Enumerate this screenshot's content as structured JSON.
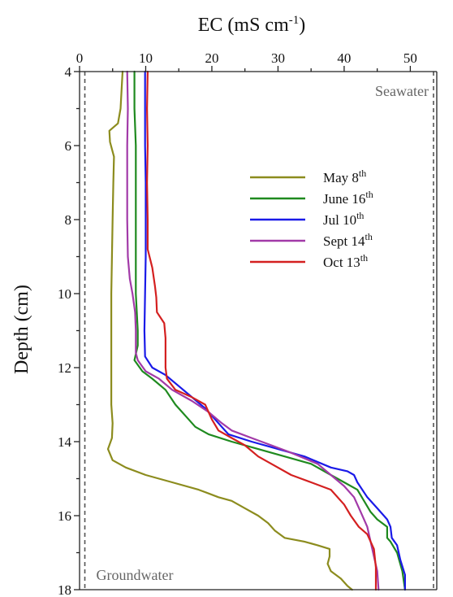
{
  "chart_data": {
    "type": "line",
    "orientation": "depth-profile",
    "title": "",
    "xlabel": "EC (mS cm",
    "xlabel_superscript": "-1",
    "xlabel_suffix": ")",
    "ylabel": "Depth (cm)",
    "xlim": [
      0,
      54
    ],
    "ylim": [
      4,
      18
    ],
    "y_inverted": true,
    "x_axis_position": "top",
    "x_ticks": [
      0,
      10,
      20,
      30,
      40,
      50
    ],
    "y_ticks": [
      4,
      6,
      8,
      10,
      12,
      14,
      16,
      18
    ],
    "grid": false,
    "legend_position": "center-right",
    "reference_lines": [
      {
        "label": "Groundwater",
        "x": 0.8,
        "label_position": "bottom-left"
      },
      {
        "label": "Seawater",
        "x": 54,
        "label_position": "top-right"
      }
    ],
    "series": [
      {
        "name": "May 8",
        "name_superscript": "th",
        "color": "#8c8c1e",
        "points": [
          [
            6.5,
            4
          ],
          [
            6.2,
            5
          ],
          [
            5.8,
            5.4
          ],
          [
            4.5,
            5.6
          ],
          [
            4.6,
            5.9
          ],
          [
            5.2,
            6.3
          ],
          [
            5.1,
            7
          ],
          [
            5.0,
            8
          ],
          [
            4.9,
            9
          ],
          [
            4.8,
            10
          ],
          [
            4.8,
            11
          ],
          [
            4.8,
            12
          ],
          [
            4.8,
            13
          ],
          [
            5.0,
            13.5
          ],
          [
            4.9,
            13.9
          ],
          [
            4.3,
            14.2
          ],
          [
            5.0,
            14.5
          ],
          [
            7,
            14.7
          ],
          [
            10,
            14.9
          ],
          [
            14,
            15.1
          ],
          [
            18,
            15.3
          ],
          [
            21,
            15.5
          ],
          [
            23,
            15.6
          ],
          [
            25,
            15.8
          ],
          [
            27,
            16.0
          ],
          [
            28.5,
            16.2
          ],
          [
            29.5,
            16.4
          ],
          [
            31,
            16.6
          ],
          [
            34,
            16.7
          ],
          [
            36,
            16.8
          ],
          [
            37.8,
            16.9
          ],
          [
            37.8,
            17.1
          ],
          [
            37.5,
            17.3
          ],
          [
            38,
            17.5
          ],
          [
            39.5,
            17.7
          ],
          [
            40.5,
            17.9
          ],
          [
            41.2,
            18
          ]
        ]
      },
      {
        "name": "June 16",
        "name_superscript": "th",
        "color": "#1f8a1f",
        "points": [
          [
            8.3,
            4
          ],
          [
            8.3,
            5
          ],
          [
            8.5,
            6
          ],
          [
            8.5,
            7
          ],
          [
            8.5,
            8
          ],
          [
            8.5,
            9
          ],
          [
            8.5,
            10
          ],
          [
            8.8,
            11
          ],
          [
            8.8,
            11.4
          ],
          [
            8.3,
            11.8
          ],
          [
            9.5,
            12.1
          ],
          [
            11,
            12.3
          ],
          [
            13,
            12.6
          ],
          [
            14.5,
            13
          ],
          [
            16,
            13.3
          ],
          [
            17.5,
            13.6
          ],
          [
            19.5,
            13.8
          ],
          [
            23,
            14.0
          ],
          [
            27,
            14.2
          ],
          [
            31,
            14.4
          ],
          [
            35,
            14.6
          ],
          [
            38,
            14.9
          ],
          [
            40,
            15.1
          ],
          [
            42,
            15.3
          ],
          [
            43,
            15.6
          ],
          [
            44,
            15.9
          ],
          [
            45,
            16.1
          ],
          [
            46.5,
            16.3
          ],
          [
            46.5,
            16.6
          ],
          [
            47,
            16.7
          ],
          [
            48,
            17.0
          ],
          [
            48.8,
            17.5
          ],
          [
            49.2,
            18
          ]
        ]
      },
      {
        "name": "Jul 10",
        "name_superscript": "th",
        "color": "#1a1ae8",
        "points": [
          [
            9.9,
            4
          ],
          [
            9.9,
            5
          ],
          [
            9.9,
            6
          ],
          [
            10,
            7
          ],
          [
            10,
            8
          ],
          [
            10,
            9
          ],
          [
            9.9,
            10
          ],
          [
            9.8,
            11
          ],
          [
            9.9,
            11.7
          ],
          [
            11,
            12
          ],
          [
            13,
            12.2
          ],
          [
            15,
            12.5
          ],
          [
            17,
            12.8
          ],
          [
            19,
            13.1
          ],
          [
            21,
            13.5
          ],
          [
            22.5,
            13.8
          ],
          [
            26,
            14.0
          ],
          [
            30,
            14.2
          ],
          [
            34,
            14.4
          ],
          [
            38,
            14.7
          ],
          [
            40.5,
            14.8
          ],
          [
            41.5,
            14.9
          ],
          [
            42,
            15.1
          ],
          [
            43.5,
            15.5
          ],
          [
            45,
            15.8
          ],
          [
            46.5,
            16.1
          ],
          [
            47,
            16.3
          ],
          [
            47.2,
            16.6
          ],
          [
            48,
            16.8
          ],
          [
            48.5,
            17.2
          ],
          [
            49.2,
            17.6
          ],
          [
            49.2,
            18
          ]
        ]
      },
      {
        "name": "Sept 14",
        "name_superscript": "th",
        "color": "#a23aa8",
        "points": [
          [
            7.2,
            4
          ],
          [
            7.3,
            5
          ],
          [
            7.2,
            6
          ],
          [
            7.2,
            7
          ],
          [
            7.2,
            8
          ],
          [
            7.3,
            9
          ],
          [
            7.6,
            9.6
          ],
          [
            8.0,
            10
          ],
          [
            8.4,
            10.5
          ],
          [
            8.5,
            11
          ],
          [
            8.5,
            11.6
          ],
          [
            8.8,
            11.8
          ],
          [
            10,
            12.1
          ],
          [
            12,
            12.3
          ],
          [
            14,
            12.6
          ],
          [
            17,
            12.9
          ],
          [
            19.5,
            13.2
          ],
          [
            21.5,
            13.5
          ],
          [
            23,
            13.7
          ],
          [
            26,
            13.9
          ],
          [
            29,
            14.1
          ],
          [
            32,
            14.3
          ],
          [
            36,
            14.6
          ],
          [
            38,
            14.9
          ],
          [
            40,
            15.2
          ],
          [
            41.5,
            15.5
          ],
          [
            42.5,
            15.9
          ],
          [
            43.5,
            16.3
          ],
          [
            44,
            16.7
          ],
          [
            44.5,
            17.1
          ],
          [
            45,
            17.5
          ],
          [
            45.2,
            18
          ]
        ]
      },
      {
        "name": "Oct 13",
        "name_superscript": "th",
        "color": "#d42020",
        "points": [
          [
            10.3,
            4
          ],
          [
            10.2,
            5
          ],
          [
            10.3,
            6
          ],
          [
            10.2,
            7
          ],
          [
            10.3,
            8
          ],
          [
            10.3,
            8.8
          ],
          [
            11.0,
            9.3
          ],
          [
            11.4,
            9.8
          ],
          [
            11.6,
            10.1
          ],
          [
            11.7,
            10.5
          ],
          [
            12.8,
            10.8
          ],
          [
            13,
            11.2
          ],
          [
            13,
            12
          ],
          [
            13.2,
            12.3
          ],
          [
            14.5,
            12.6
          ],
          [
            17,
            12.8
          ],
          [
            19,
            13.0
          ],
          [
            20,
            13.4
          ],
          [
            21,
            13.7
          ],
          [
            23,
            13.9
          ],
          [
            25,
            14.1
          ],
          [
            27,
            14.4
          ],
          [
            29,
            14.6
          ],
          [
            32,
            14.9
          ],
          [
            35,
            15.1
          ],
          [
            38,
            15.3
          ],
          [
            40,
            15.7
          ],
          [
            41,
            16.0
          ],
          [
            42.2,
            16.3
          ],
          [
            43.5,
            16.5
          ],
          [
            44.5,
            16.9
          ],
          [
            44.8,
            17.4
          ],
          [
            44.8,
            18
          ]
        ]
      }
    ]
  }
}
